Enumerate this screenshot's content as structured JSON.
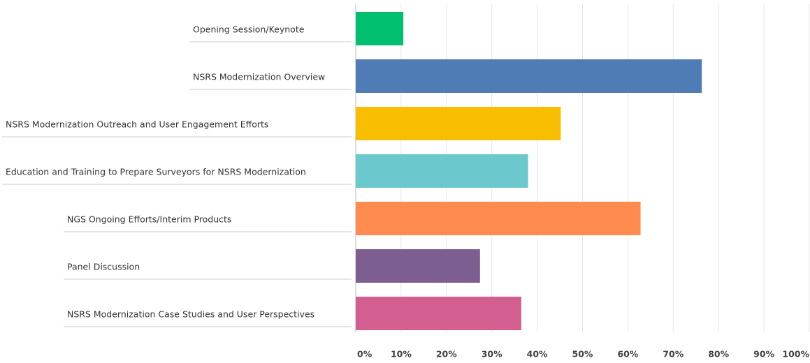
{
  "chart_data": {
    "type": "barh",
    "categories": [
      "Opening Session/Keynote",
      "NSRS Modernization Overview",
      "NSRS Modernization Outreach and User Engagement Efforts",
      "Education and Training to Prepare Surveyors for NSRS Modernization",
      "NGS Ongoing Efforts/Interim Products",
      "Panel Discussion",
      "NSRS Modernization Case Studies and User Perspectives"
    ],
    "values": [
      10.5,
      76.3,
      45.2,
      38.0,
      62.8,
      27.4,
      36.5
    ],
    "colors": [
      "#00bf6f",
      "#507cb6",
      "#f9be00",
      "#6bc8cd",
      "#ff8b4f",
      "#7d5e90",
      "#d25f90"
    ],
    "xlim": [
      0,
      100
    ],
    "xticks": [
      {
        "value": 0,
        "label": "0%"
      },
      {
        "value": 10,
        "label": "10%"
      },
      {
        "value": 20,
        "label": "20%"
      },
      {
        "value": 30,
        "label": "30%"
      },
      {
        "value": 40,
        "label": "40%"
      },
      {
        "value": 50,
        "label": "50%"
      },
      {
        "value": 60,
        "label": "60%"
      },
      {
        "value": 70,
        "label": "70%"
      },
      {
        "value": 80,
        "label": "80%"
      },
      {
        "value": 90,
        "label": "90%"
      },
      {
        "value": 100,
        "label": "100%"
      }
    ],
    "grid": true
  }
}
